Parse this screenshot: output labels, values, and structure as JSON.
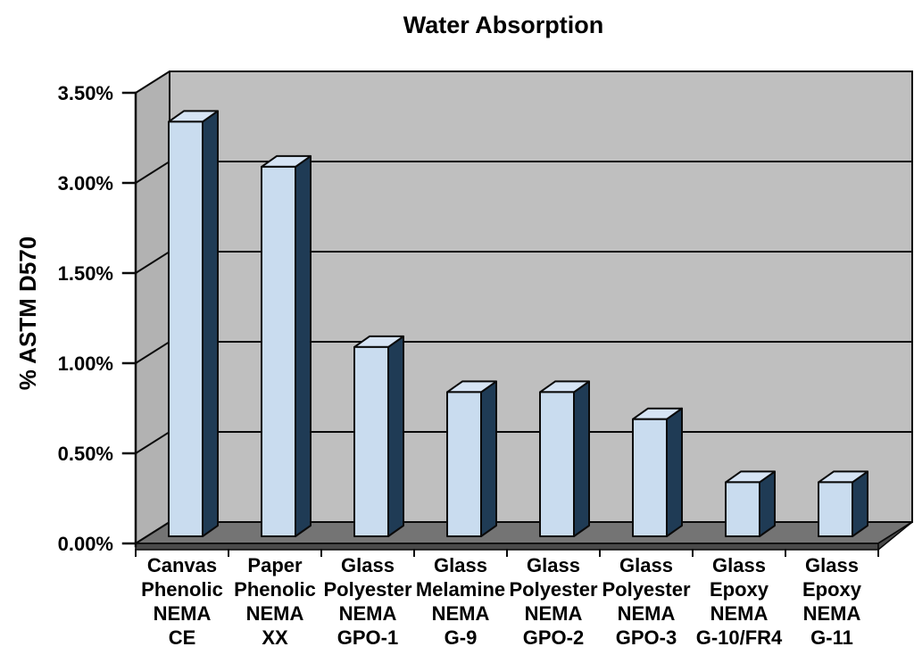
{
  "figure": {
    "title": "Water Absorption"
  },
  "chart_data": {
    "type": "bar",
    "projection": "3d-oblique",
    "title": "Water Absorption",
    "xlabel": "",
    "ylabel": "% ASTM D570",
    "legend": "none",
    "grid": "horizontal-major",
    "y_tick_labels": [
      "0.00%",
      "0.50%",
      "1.00%",
      "1.50%",
      "3.00%",
      "3.50%"
    ],
    "y_tick_values": [
      0,
      0.5,
      1.0,
      1.5,
      3.0,
      3.5
    ],
    "y_axis_note": "ticks are evenly spaced on screen despite non-linear values (jump from 1.50% to 3.00%)",
    "categories": [
      [
        "Canvas",
        "Phenolic",
        "NEMA",
        "CE"
      ],
      [
        "Paper",
        "Phenolic",
        "NEMA",
        "XX"
      ],
      [
        "Glass",
        "Polyester",
        "NEMA",
        "GPO-1"
      ],
      [
        "Glass",
        "Melamine",
        "NEMA",
        "G-9"
      ],
      [
        "Glass",
        "Polyester",
        "NEMA",
        "GPO-2"
      ],
      [
        "Glass",
        "Polyester",
        "NEMA",
        "GPO-3"
      ],
      [
        "Glass",
        "Epoxy",
        "NEMA",
        "G-10/FR4"
      ],
      [
        "Glass",
        "Epoxy",
        "NEMA",
        "G-11"
      ]
    ],
    "values": [
      3.3,
      3.05,
      1.05,
      0.8,
      0.8,
      0.65,
      0.3,
      0.3
    ],
    "unit": "%",
    "colors": {
      "bar_front": "#C9DCEF",
      "bar_top": "#D6E4F4",
      "bar_side": "#1F3B55",
      "wall_back": "#BFBFBF",
      "wall_left": "#B2B2B2",
      "floor_top": "#747474",
      "floor_edge": "#4A4A4A",
      "outline": "#0A0A0A",
      "text": "#000000",
      "background": "#FFFFFF"
    }
  }
}
